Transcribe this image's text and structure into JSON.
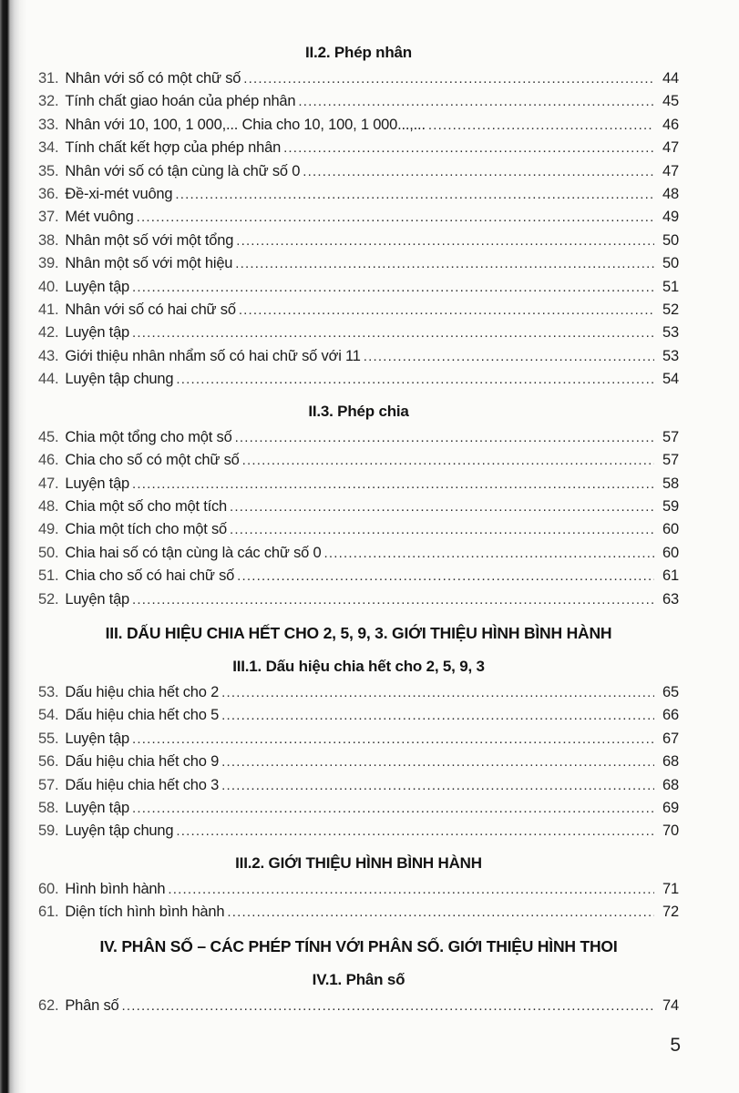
{
  "page": {
    "number_label": "5"
  },
  "toc": {
    "sections": [
      {
        "heading": "II.2. Phép nhân",
        "style": "sub",
        "items": [
          {
            "num": "31.",
            "title": "Nhân với số có một chữ số",
            "page": "44"
          },
          {
            "num": "32.",
            "title": "Tính chất giao hoán của phép nhân",
            "page": "45"
          },
          {
            "num": "33.",
            "title": "Nhân với 10, 100, 1 000,... Chia cho 10, 100, 1 000...,...",
            "page": "46"
          },
          {
            "num": "34.",
            "title": "Tính chất kết hợp của phép nhân",
            "page": "47"
          },
          {
            "num": "35.",
            "title": "Nhân với số có tận cùng là chữ số 0",
            "page": "47"
          },
          {
            "num": "36.",
            "title": "Đề-xi-mét vuông",
            "page": "48"
          },
          {
            "num": "37.",
            "title": "Mét vuông",
            "page": "49"
          },
          {
            "num": "38.",
            "title": "Nhân một số với một tổng",
            "page": "50"
          },
          {
            "num": "39.",
            "title": "Nhân một số với một hiệu",
            "page": "50"
          },
          {
            "num": "40.",
            "title": "Luyện tập",
            "page": "51"
          },
          {
            "num": "41.",
            "title": "Nhân với số có hai chữ số",
            "page": "52"
          },
          {
            "num": "42.",
            "title": "Luyện tập",
            "page": "53"
          },
          {
            "num": "43.",
            "title": "Giới thiệu nhân nhẩm số có hai chữ số với 11",
            "page": "53"
          },
          {
            "num": "44.",
            "title": "Luyện tập chung",
            "page": "54"
          }
        ]
      },
      {
        "heading": "II.3. Phép chia",
        "style": "sub",
        "items": [
          {
            "num": "45.",
            "title": "Chia một tổng cho một số",
            "page": "57"
          },
          {
            "num": "46.",
            "title": "Chia cho số có một chữ số",
            "page": "57"
          },
          {
            "num": "47.",
            "title": "Luyện tập",
            "page": "58"
          },
          {
            "num": "48.",
            "title": "Chia một số cho một tích",
            "page": "59"
          },
          {
            "num": "49.",
            "title": "Chia một tích cho một số",
            "page": "60"
          },
          {
            "num": "50.",
            "title": "Chia hai số có tận cùng là các chữ số 0",
            "page": "60"
          },
          {
            "num": "51.",
            "title": "Chia cho số có hai chữ số",
            "page": "61"
          },
          {
            "num": "52.",
            "title": "Luyện tập",
            "page": "63"
          }
        ]
      },
      {
        "heading": "III. DẤU HIỆU CHIA HẾT CHO 2, 5, 9, 3. GIỚI THIỆU HÌNH BÌNH HÀNH",
        "style": "main",
        "items": []
      },
      {
        "heading": "III.1. Dấu hiệu chia hết cho 2, 5, 9, 3",
        "style": "sub",
        "items": [
          {
            "num": "53.",
            "title": "Dấu hiệu chia hết cho 2",
            "page": "65"
          },
          {
            "num": "54.",
            "title": "Dấu hiệu chia hết cho 5",
            "page": "66"
          },
          {
            "num": "55.",
            "title": "Luyện tập",
            "page": "67"
          },
          {
            "num": "56.",
            "title": "Dấu hiệu chia hết cho 9",
            "page": "68"
          },
          {
            "num": "57.",
            "title": "Dấu hiệu chia hết cho 3",
            "page": "68"
          },
          {
            "num": "58.",
            "title": "Luyện tập",
            "page": "69"
          },
          {
            "num": "59.",
            "title": "Luyện tập chung",
            "page": "70"
          }
        ]
      },
      {
        "heading": "III.2. GIỚI THIỆU HÌNH BÌNH HÀNH",
        "style": "sub",
        "items": [
          {
            "num": "60.",
            "title": "Hình bình hành",
            "page": "71"
          },
          {
            "num": "61.",
            "title": "Diện tích hình bình hành",
            "page": "72"
          }
        ]
      },
      {
        "heading": "IV. PHÂN SỐ – CÁC PHÉP TÍNH VỚI PHÂN SỐ. GIỚI THIỆU HÌNH THOI",
        "style": "main",
        "items": []
      },
      {
        "heading": "IV.1. Phân số",
        "style": "sub",
        "items": [
          {
            "num": "62.",
            "title": "Phân số",
            "page": "74"
          }
        ]
      }
    ]
  }
}
